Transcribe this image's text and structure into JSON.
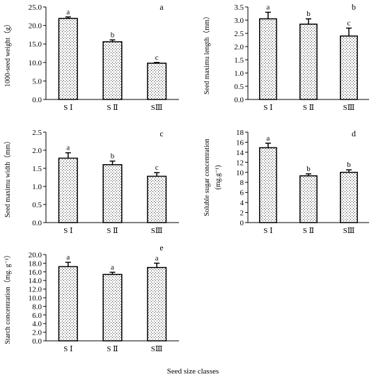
{
  "figure_xlabel": "Seed size classes",
  "chart_data": [
    {
      "type": "bar",
      "panel_label": "a",
      "categories": [
        "S Ⅰ",
        "S Ⅱ",
        "SⅢ"
      ],
      "values": [
        21.9,
        15.6,
        9.8
      ],
      "errors": [
        0.4,
        0.5,
        0.2
      ],
      "significance": [
        "a",
        "b",
        "c"
      ],
      "ylabel": "1000-seed weight（g）",
      "ylim": [
        0,
        25
      ],
      "yticks": [
        "0.0",
        "5.0",
        "10.0",
        "15.0",
        "20.0",
        "25.0"
      ]
    },
    {
      "type": "bar",
      "panel_label": "b",
      "categories": [
        "S Ⅰ",
        "S Ⅱ",
        "SⅢ"
      ],
      "values": [
        3.05,
        2.85,
        2.4
      ],
      "errors": [
        0.25,
        0.2,
        0.3
      ],
      "significance": [
        "a",
        "b",
        "c"
      ],
      "ylabel": "Seed maximu length（mm）",
      "ylim": [
        0,
        3.5
      ],
      "yticks": [
        "0.0",
        "0.5",
        "1.0",
        "1.5",
        "2.0",
        "2.5",
        "3.0",
        "3.5"
      ]
    },
    {
      "type": "bar",
      "panel_label": "c",
      "categories": [
        "S Ⅰ",
        "S Ⅱ",
        "SⅢ"
      ],
      "values": [
        1.78,
        1.6,
        1.28
      ],
      "errors": [
        0.15,
        0.1,
        0.1
      ],
      "significance": [
        "a",
        "b",
        "c"
      ],
      "ylabel": "Seed maximu width（mm）",
      "ylim": [
        0,
        2.5
      ],
      "yticks": [
        "0.0",
        "0.5",
        "1.0",
        "1.5",
        "2.0",
        "2.5"
      ]
    },
    {
      "type": "bar",
      "panel_label": "d",
      "categories": [
        "S Ⅰ",
        "S Ⅱ",
        "SⅢ"
      ],
      "values": [
        14.9,
        9.3,
        10.0
      ],
      "errors": [
        0.9,
        0.4,
        0.5
      ],
      "significance": [
        "a",
        "b",
        "b"
      ],
      "ylabel": "Soluble sugar concentration",
      "ylabel2": "(mg.g⁻¹)",
      "ylim": [
        0,
        18
      ],
      "yticks": [
        "0",
        "2",
        "4",
        "6",
        "8",
        "10",
        "12",
        "14",
        "16",
        "18"
      ]
    },
    {
      "type": "bar",
      "panel_label": "e",
      "categories": [
        "S Ⅰ",
        "S Ⅱ",
        "SⅢ"
      ],
      "values": [
        17.2,
        15.4,
        17.0
      ],
      "errors": [
        1.0,
        0.5,
        1.0
      ],
      "significance": [
        "a",
        "a",
        "a"
      ],
      "ylabel": "Starch concentration（mg. g⁻¹）",
      "ylim": [
        0,
        20
      ],
      "yticks": [
        "0.0",
        "2.0",
        "4.0",
        "6.0",
        "8.0",
        "10.0",
        "12.0",
        "14.0",
        "16.0",
        "18.0",
        "20.0"
      ]
    }
  ]
}
